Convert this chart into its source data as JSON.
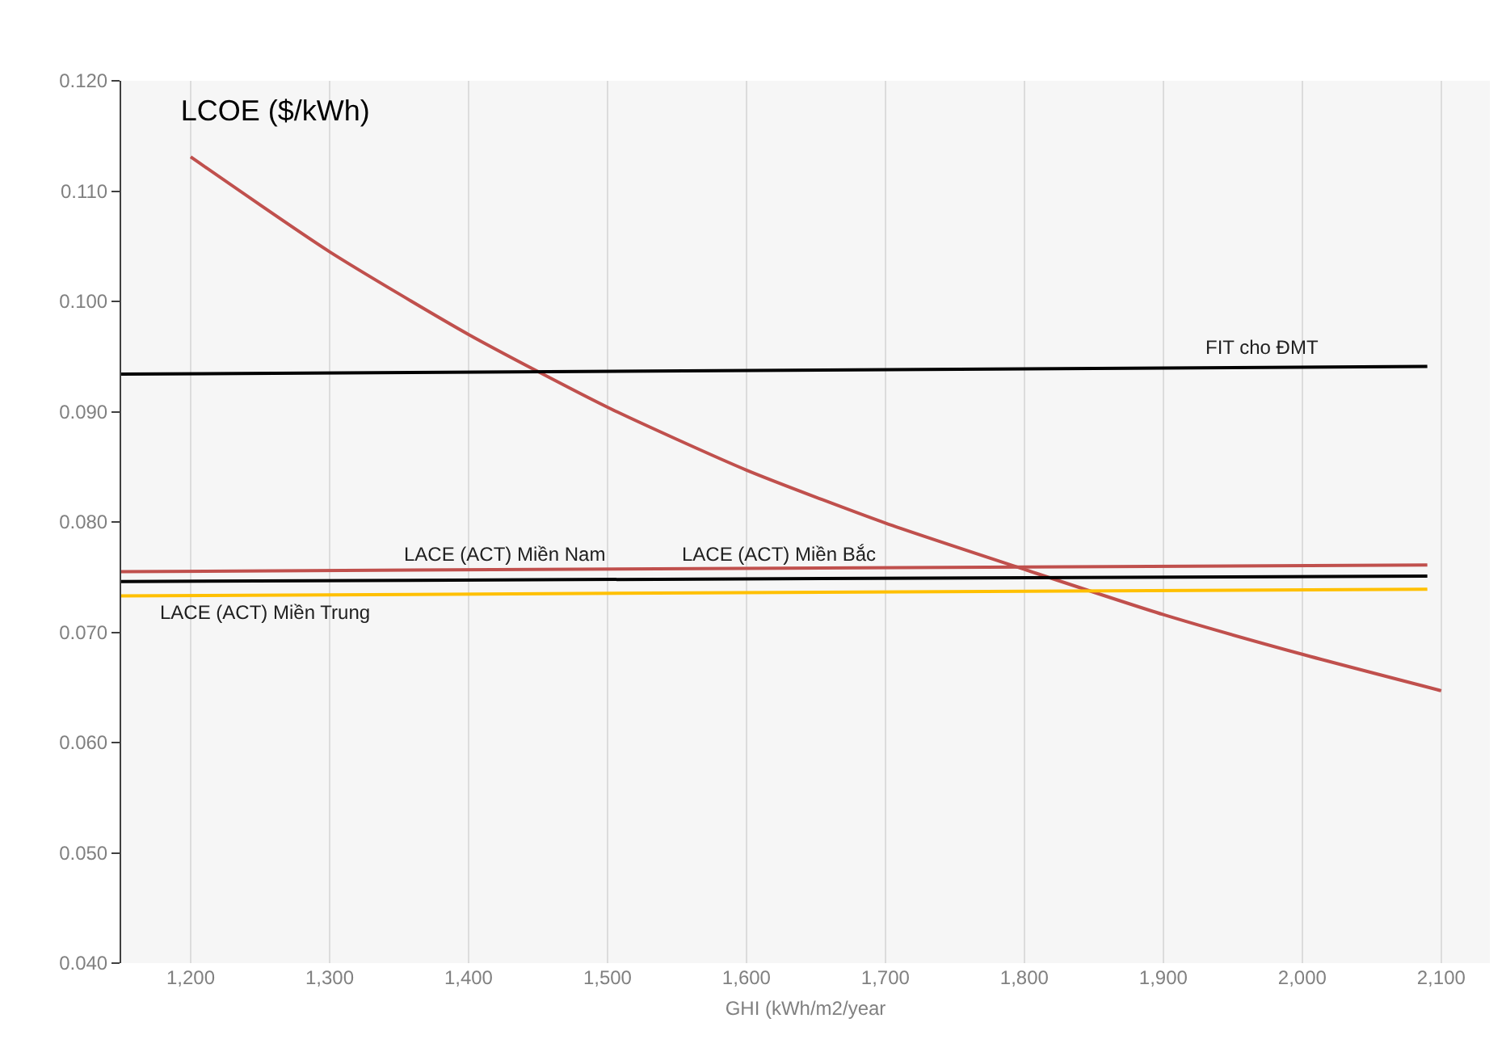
{
  "chart_data": {
    "type": "line",
    "title": "LCOE ($/kWh)",
    "xlabel": "GHI (kWh/m2/year",
    "xlim": [
      1150,
      2135
    ],
    "xticks": [
      {
        "value": 1200,
        "label": "1,200"
      },
      {
        "value": 1300,
        "label": "1,300"
      },
      {
        "value": 1400,
        "label": "1,400"
      },
      {
        "value": 1500,
        "label": "1,500"
      },
      {
        "value": 1600,
        "label": "1,600"
      },
      {
        "value": 1700,
        "label": "1,700"
      },
      {
        "value": 1800,
        "label": "1,800"
      },
      {
        "value": 1900,
        "label": "1,900"
      },
      {
        "value": 2000,
        "label": "2,000"
      },
      {
        "value": 2100,
        "label": "2,100"
      }
    ],
    "ylim": [
      0.04,
      0.12
    ],
    "yticks": [
      {
        "value": 0.04,
        "label": "0.040"
      },
      {
        "value": 0.05,
        "label": "0.050"
      },
      {
        "value": 0.06,
        "label": "0.060"
      },
      {
        "value": 0.07,
        "label": "0.070"
      },
      {
        "value": 0.08,
        "label": "0.080"
      },
      {
        "value": 0.09,
        "label": "0.090"
      },
      {
        "value": 0.1,
        "label": "0.100"
      },
      {
        "value": 0.11,
        "label": "0.110"
      },
      {
        "value": 0.12,
        "label": "0.120"
      }
    ],
    "grid": "x",
    "marker": "none",
    "line_style": "solid",
    "series": [
      {
        "color": "#c0504d",
        "x": [
          1200,
          1300,
          1400,
          1500,
          1600,
          1700,
          1800,
          1900,
          2000,
          2100
        ],
        "values": [
          0.1131,
          0.1045,
          0.097,
          0.0904,
          0.0847,
          0.0799,
          0.0757,
          0.0716,
          0.068,
          0.0647
        ]
      },
      {
        "color": "#000000",
        "x": [
          1150,
          2090
        ],
        "values": [
          0.0934,
          0.0941
        ]
      },
      {
        "color": "#c0504d",
        "x": [
          1150,
          2090
        ],
        "values": [
          0.0755,
          0.0761
        ]
      },
      {
        "color": "#000000",
        "x": [
          1150,
          2090
        ],
        "values": [
          0.0746,
          0.0751
        ]
      },
      {
        "color": "#ffc000",
        "x": [
          1150,
          2090
        ],
        "values": [
          0.0733,
          0.0739
        ]
      }
    ],
    "annotations": [
      "FIT cho ĐMT",
      "LACE (ACT) Miền Bắc",
      "LACE (ACT) Miền Nam",
      "LACE (ACT) Miền Trung"
    ]
  }
}
